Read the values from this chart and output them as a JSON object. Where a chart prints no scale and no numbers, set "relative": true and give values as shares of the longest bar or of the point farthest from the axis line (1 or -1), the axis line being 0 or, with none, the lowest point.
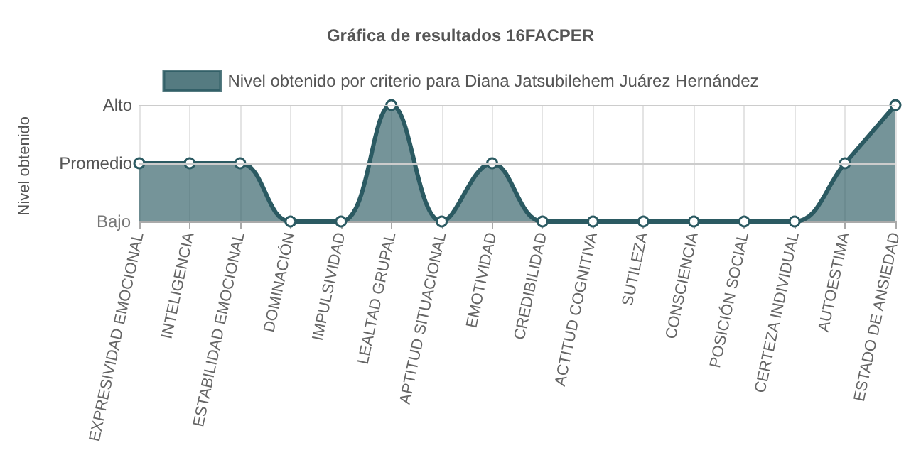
{
  "chart_data": {
    "type": "area",
    "title": "Gráfica de resultados 16FACPER",
    "ylabel": "Nivel obtenido",
    "categories": [
      "EXPRESIVIDAD EMOCIONAL",
      "INTELIGENCIA",
      "ESTABILIDAD EMOCIONAL",
      "DOMINACIÓN",
      "IMPULSIVIDAD",
      "LEALTAD GRUPAL",
      "APTITUD SITUACIONAL",
      "EMOTIVIDAD",
      "CREDIBILIDAD",
      "ACTITUD COGNITIVA",
      "SUTILEZA",
      "CONSCIENCIA",
      "POSICIÓN SOCIAL",
      "CERTEZA INDIVIDUAL",
      "AUTOESTIMA",
      "ESTADO DE ANSIEDAD"
    ],
    "series": [
      {
        "name": "Nivel obtenido por criterio para Diana Jatsubilehem Juárez Hernández",
        "color": "#2b5a62",
        "values": [
          0.5,
          0.5,
          0.5,
          0,
          0,
          1,
          0,
          0.5,
          0,
          0,
          0,
          0,
          0,
          0,
          0.5,
          1
        ]
      }
    ],
    "relative": true,
    "ref_lines": [
      {
        "axis": "y",
        "value": 1,
        "label": "Alto",
        "color": "#cccccc"
      },
      {
        "axis": "y",
        "value": 0.5,
        "label": "Promedio",
        "color": "#cccccc"
      }
    ],
    "annotations": [
      "Bajo"
    ],
    "grid": true,
    "legend": "top",
    "marker": "circle",
    "line_style": "solid"
  }
}
